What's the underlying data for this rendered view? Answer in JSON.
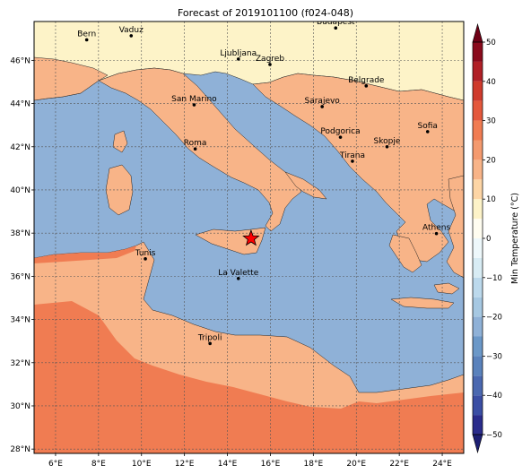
{
  "title": "Forecast of 2019101100 (f024-048)",
  "map": {
    "lon_range": [
      5,
      25
    ],
    "lat_range": [
      27.8,
      47.8
    ],
    "lon_ticks": [
      {
        "v": 6,
        "label": "6°E"
      },
      {
        "v": 8,
        "label": "8°E"
      },
      {
        "v": 10,
        "label": "10°E"
      },
      {
        "v": 12,
        "label": "12°E"
      },
      {
        "v": 14,
        "label": "14°E"
      },
      {
        "v": 16,
        "label": "16°E"
      },
      {
        "v": 18,
        "label": "18°E"
      },
      {
        "v": 20,
        "label": "20°E"
      },
      {
        "v": 22,
        "label": "22°E"
      },
      {
        "v": 24,
        "label": "24°E"
      }
    ],
    "lat_ticks": [
      {
        "v": 28,
        "label": "28°N"
      },
      {
        "v": 30,
        "label": "30°N"
      },
      {
        "v": 32,
        "label": "32°N"
      },
      {
        "v": 34,
        "label": "34°N"
      },
      {
        "v": 36,
        "label": "36°N"
      },
      {
        "v": 38,
        "label": "38°N"
      },
      {
        "v": 40,
        "label": "40°N"
      },
      {
        "v": 42,
        "label": "42°N"
      },
      {
        "v": 44,
        "label": "44°N"
      },
      {
        "v": 46,
        "label": "46°N"
      }
    ],
    "gridlines": true,
    "cities": [
      {
        "name": "Bern",
        "lon": 7.45,
        "lat": 46.95
      },
      {
        "name": "Vaduz",
        "lon": 9.52,
        "lat": 47.14
      },
      {
        "name": "Budapest",
        "lon": 19.04,
        "lat": 47.5
      },
      {
        "name": "Ljubljana",
        "lon": 14.51,
        "lat": 46.06
      },
      {
        "name": "Zagreb",
        "lon": 15.98,
        "lat": 45.81
      },
      {
        "name": "Belgrade",
        "lon": 20.46,
        "lat": 44.82
      },
      {
        "name": "San Marino",
        "lon": 12.45,
        "lat": 43.94
      },
      {
        "name": "Sarajevo",
        "lon": 18.41,
        "lat": 43.86
      },
      {
        "name": "Sofia",
        "lon": 23.32,
        "lat": 42.7
      },
      {
        "name": "Roma",
        "lon": 12.5,
        "lat": 41.9
      },
      {
        "name": "Podgorica",
        "lon": 19.26,
        "lat": 42.44
      },
      {
        "name": "Skopje",
        "lon": 21.43,
        "lat": 42.0
      },
      {
        "name": "Tirana",
        "lon": 19.82,
        "lat": 41.33
      },
      {
        "name": "Athens",
        "lon": 23.73,
        "lat": 37.98
      },
      {
        "name": "Tunis",
        "lon": 10.18,
        "lat": 36.81
      },
      {
        "name": "La Valette",
        "lon": 14.51,
        "lat": 35.9
      },
      {
        "name": "Tripoli",
        "lon": 13.19,
        "lat": 32.89
      }
    ],
    "marker": {
      "symbol": "star",
      "lon": 15.1,
      "lat": 37.75,
      "color": "#ff0000"
    }
  },
  "colorbar": {
    "label": "Min Temperature (°C)",
    "min": -50,
    "max": 50,
    "ticks": [
      {
        "v": -50,
        "label": "−50"
      },
      {
        "v": -40,
        "label": "−40"
      },
      {
        "v": -30,
        "label": "−30"
      },
      {
        "v": -20,
        "label": "−20"
      },
      {
        "v": -10,
        "label": "−10"
      },
      {
        "v": 0,
        "label": "0"
      },
      {
        "v": 10,
        "label": "10"
      },
      {
        "v": 20,
        "label": "20"
      },
      {
        "v": 30,
        "label": "30"
      },
      {
        "v": 40,
        "label": "40"
      },
      {
        "v": 50,
        "label": "50"
      }
    ],
    "bins": [
      {
        "from": -50,
        "to": -45,
        "color": "#2a2c8c"
      },
      {
        "from": -45,
        "to": -40,
        "color": "#3a4ea4"
      },
      {
        "from": -40,
        "to": -35,
        "color": "#4a68b0"
      },
      {
        "from": -35,
        "to": -30,
        "color": "#5a82bc"
      },
      {
        "from": -30,
        "to": -25,
        "color": "#6b98c8"
      },
      {
        "from": -25,
        "to": -20,
        "color": "#8fb1d7"
      },
      {
        "from": -20,
        "to": -15,
        "color": "#a6c8e2"
      },
      {
        "from": -15,
        "to": -10,
        "color": "#bcd9ec"
      },
      {
        "from": -10,
        "to": -5,
        "color": "#d8ecf4"
      },
      {
        "from": -5,
        "to": 0,
        "color": "#eef8fb"
      },
      {
        "from": 0,
        "to": 5,
        "color": "#fffdf0"
      },
      {
        "from": 5,
        "to": 10,
        "color": "#fdf3c8"
      },
      {
        "from": 10,
        "to": 15,
        "color": "#fdd5a5"
      },
      {
        "from": 15,
        "to": 20,
        "color": "#f8b488"
      },
      {
        "from": 20,
        "to": 25,
        "color": "#f49a6e"
      },
      {
        "from": 25,
        "to": 30,
        "color": "#f07c52"
      },
      {
        "from": 30,
        "to": 35,
        "color": "#e4583c"
      },
      {
        "from": 35,
        "to": 40,
        "color": "#cf3a2c"
      },
      {
        "from": 40,
        "to": 45,
        "color": "#b01f26"
      },
      {
        "from": 45,
        "to": 50,
        "color": "#8a0a1c"
      }
    ],
    "under_color": "#1d1f73",
    "over_color": "#6e0015"
  },
  "colors": {
    "sea": "#8fb1d7",
    "land_mild": "#f8b488",
    "land_warm": "#f07c52",
    "land_cool": "#fdf3c8"
  }
}
